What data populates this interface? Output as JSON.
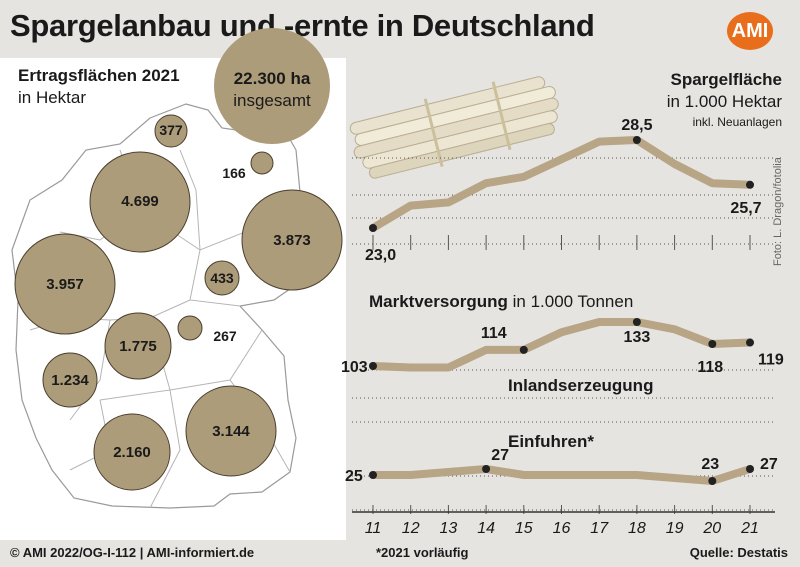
{
  "title": "Spargelanbau und -ernte in Deutschland",
  "logo": "AMI",
  "map": {
    "heading": "Ertragsflächen 2021",
    "unit": "in Hektar",
    "total_value": "22.300 ha",
    "total_label": "insgesamt",
    "states": [
      {
        "label": "377",
        "value": 377
      },
      {
        "label": "166",
        "value": 166
      },
      {
        "label": "4.699",
        "value": 4699
      },
      {
        "label": "3.873",
        "value": 3873
      },
      {
        "label": "433",
        "value": 433
      },
      {
        "label": "3.957",
        "value": 3957
      },
      {
        "label": "267",
        "value": 267
      },
      {
        "label": "1.775",
        "value": 1775
      },
      {
        "label": "1.234",
        "value": 1234
      },
      {
        "label": "3.144",
        "value": 3144
      },
      {
        "label": "2.160",
        "value": 2160
      }
    ]
  },
  "photo_credit": "Foto: L. Dragon/fotolia",
  "chart_data": [
    {
      "type": "line",
      "title": "Spargelfläche",
      "subtitle": "in 1.000 Hektar",
      "note": "inkl. Neuanlagen",
      "x": [
        "11",
        "12",
        "13",
        "14",
        "15",
        "16",
        "17",
        "18",
        "19",
        "20",
        "21"
      ],
      "values": [
        23.0,
        24.4,
        24.6,
        25.8,
        26.2,
        27.3,
        28.4,
        28.5,
        27.0,
        25.8,
        25.7
      ],
      "data_labels": [
        {
          "index": 0,
          "text": "23,0"
        },
        {
          "index": 7,
          "text": "28,5"
        },
        {
          "index": 10,
          "text": "25,7"
        }
      ],
      "ylim": [
        22.5,
        29.5
      ]
    },
    {
      "type": "line",
      "title": "Marktversorgung",
      "subtitle": "in 1.000 Tonnen",
      "series": [
        {
          "name": "Inlandserzeugung",
          "values": [
            103,
            102,
            102,
            114,
            114,
            126,
            133,
            133,
            128,
            118,
            119
          ],
          "data_labels": [
            {
              "index": 0,
              "text": "103"
            },
            {
              "index": 4,
              "text": "114"
            },
            {
              "index": 7,
              "text": "133"
            },
            {
              "index": 9,
              "text": "118"
            },
            {
              "index": 10,
              "text": "119"
            }
          ]
        },
        {
          "name": "Einfuhren*",
          "values": [
            25,
            25,
            26,
            27,
            25,
            25,
            25,
            25,
            24,
            23,
            27
          ],
          "data_labels": [
            {
              "index": 0,
              "text": "25"
            },
            {
              "index": 3,
              "text": "27"
            },
            {
              "index": 9,
              "text": "23"
            },
            {
              "index": 10,
              "text": "27"
            }
          ]
        }
      ],
      "x": [
        "11",
        "12",
        "13",
        "14",
        "15",
        "16",
        "17",
        "18",
        "19",
        "20",
        "21"
      ]
    }
  ],
  "colors": {
    "line": "#b8a585",
    "bubble": "#ad9c7a",
    "text": "#1a1a1a",
    "logo": "#e86e1c",
    "background": "#e6e4e1"
  },
  "footer": {
    "left": "© AMI 2022/OG-I-112 | AMI-informiert.de",
    "mid": "*2021 vorläufig",
    "right": "Quelle: Destatis"
  }
}
